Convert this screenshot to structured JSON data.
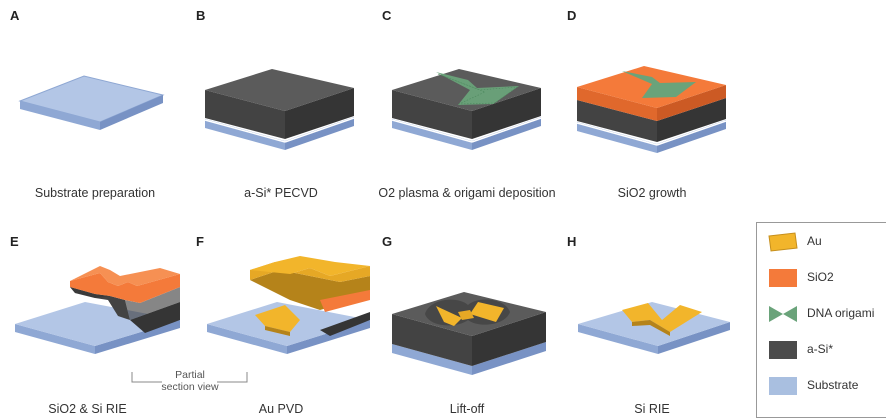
{
  "panels": [
    {
      "letter": "A",
      "caption": "Substrate preparation"
    },
    {
      "letter": "B",
      "caption": "a-Si* PECVD"
    },
    {
      "letter": "C",
      "caption": "O2 plasma & origami deposition"
    },
    {
      "letter": "D",
      "caption": "SiO2 growth"
    },
    {
      "letter": "E",
      "caption": "SiO2 & Si RIE"
    },
    {
      "letter": "F",
      "caption": "Au PVD"
    },
    {
      "letter": "G",
      "caption": "Lift-off"
    },
    {
      "letter": "H",
      "caption": "Si RIE"
    }
  ],
  "partial_section_note": "Partial section view",
  "legend": [
    {
      "label": "Au",
      "color": "#f0b323"
    },
    {
      "label": "SiO2",
      "color": "#f47a3a"
    },
    {
      "label": "DNA origami",
      "color": "#6aa37a"
    },
    {
      "label": "a-Si*",
      "color": "#4b4b4b"
    },
    {
      "label": "Substrate",
      "color": "#a9bfe0"
    }
  ],
  "colors": {
    "substrate_top": "#b3c6e6",
    "substrate_side": "#7f99c9",
    "si_top": "#5a5a5a",
    "si_side": "#3e3e3e",
    "sio2_top": "#f47a3a",
    "sio2_side": "#d9602a",
    "au_top": "#f2b52b",
    "au_side": "#b5831a",
    "origami": "#6aa37a"
  }
}
